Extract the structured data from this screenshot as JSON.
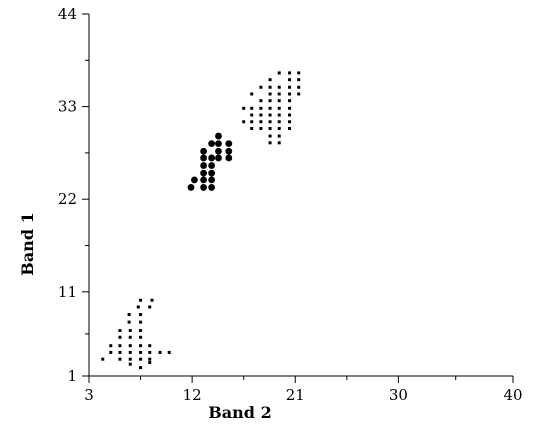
{
  "chart_data": {
    "type": "scatter",
    "title": "",
    "xlabel": "Band 2",
    "ylabel": "Band 1",
    "xlim": [
      3,
      40
    ],
    "ylim": [
      1,
      44
    ],
    "x_ticks": [
      3,
      12,
      21,
      30,
      40
    ],
    "y_ticks": [
      1,
      11,
      22,
      33,
      44
    ],
    "grid": false,
    "series": [
      {
        "marker": "small-square",
        "color": "#000000",
        "points": [
          [
            7.5,
            10.0
          ],
          [
            8.5,
            10.0
          ],
          [
            8.3,
            9.2
          ],
          [
            7.3,
            9.2
          ],
          [
            6.5,
            8.3
          ],
          [
            7.5,
            8.3
          ],
          [
            6.5,
            7.4
          ],
          [
            7.5,
            7.4
          ],
          [
            5.7,
            6.4
          ],
          [
            6.6,
            6.4
          ],
          [
            7.5,
            6.4
          ],
          [
            5.7,
            5.6
          ],
          [
            6.6,
            5.6
          ],
          [
            7.5,
            5.6
          ],
          [
            4.9,
            4.6
          ],
          [
            5.7,
            4.6
          ],
          [
            6.6,
            4.6
          ],
          [
            7.5,
            4.6
          ],
          [
            8.3,
            4.6
          ],
          [
            4.9,
            3.8
          ],
          [
            5.7,
            3.8
          ],
          [
            6.6,
            3.8
          ],
          [
            7.5,
            3.8
          ],
          [
            8.3,
            3.8
          ],
          [
            9.2,
            3.8
          ],
          [
            10.0,
            3.8
          ],
          [
            4.2,
            3.0
          ],
          [
            5.7,
            3.0
          ],
          [
            6.6,
            3.0
          ],
          [
            7.5,
            3.0
          ],
          [
            8.3,
            3.0
          ],
          [
            6.6,
            2.4
          ],
          [
            7.5,
            2.0
          ],
          [
            8.3,
            2.6
          ]
        ]
      },
      {
        "marker": "filled-circle",
        "color": "#000000",
        "points": [
          [
            14.3,
            29.5
          ],
          [
            13.7,
            28.6
          ],
          [
            14.3,
            28.6
          ],
          [
            15.2,
            28.6
          ],
          [
            13.0,
            27.7
          ],
          [
            14.3,
            27.7
          ],
          [
            15.2,
            27.7
          ],
          [
            13.0,
            26.9
          ],
          [
            13.7,
            26.9
          ],
          [
            14.3,
            26.9
          ],
          [
            15.2,
            26.9
          ],
          [
            13.0,
            26.0
          ],
          [
            13.7,
            26.0
          ],
          [
            13.0,
            25.1
          ],
          [
            13.7,
            25.1
          ],
          [
            12.2,
            24.3
          ],
          [
            13.0,
            24.3
          ],
          [
            13.7,
            24.3
          ],
          [
            11.9,
            23.4
          ],
          [
            13.0,
            23.4
          ],
          [
            13.7,
            23.4
          ]
        ]
      },
      {
        "marker": "small-square",
        "color": "#000000",
        "points": [
          [
            19.6,
            37.0
          ],
          [
            20.5,
            37.0
          ],
          [
            21.3,
            37.0
          ],
          [
            18.8,
            36.2
          ],
          [
            20.5,
            36.2
          ],
          [
            21.3,
            36.2
          ],
          [
            18.0,
            35.3
          ],
          [
            18.8,
            35.3
          ],
          [
            19.6,
            35.3
          ],
          [
            20.5,
            35.3
          ],
          [
            21.3,
            35.3
          ],
          [
            17.2,
            34.5
          ],
          [
            18.8,
            34.5
          ],
          [
            19.6,
            34.5
          ],
          [
            20.5,
            34.5
          ],
          [
            21.3,
            34.5
          ],
          [
            18.0,
            33.7
          ],
          [
            18.8,
            33.7
          ],
          [
            19.6,
            33.7
          ],
          [
            20.5,
            33.7
          ],
          [
            16.5,
            32.8
          ],
          [
            17.2,
            32.8
          ],
          [
            18.0,
            32.8
          ],
          [
            18.8,
            32.8
          ],
          [
            19.6,
            32.8
          ],
          [
            20.5,
            32.8
          ],
          [
            17.2,
            32.0
          ],
          [
            18.0,
            32.0
          ],
          [
            18.8,
            32.0
          ],
          [
            19.6,
            32.0
          ],
          [
            20.5,
            32.0
          ],
          [
            16.5,
            31.2
          ],
          [
            17.2,
            31.2
          ],
          [
            18.0,
            31.2
          ],
          [
            18.8,
            31.2
          ],
          [
            19.6,
            31.2
          ],
          [
            20.5,
            31.2
          ],
          [
            17.2,
            30.4
          ],
          [
            18.0,
            30.4
          ],
          [
            18.8,
            30.4
          ],
          [
            19.6,
            30.4
          ],
          [
            20.5,
            30.4
          ],
          [
            18.8,
            29.5
          ],
          [
            19.6,
            29.5
          ],
          [
            18.8,
            28.7
          ],
          [
            19.6,
            28.7
          ]
        ]
      }
    ]
  }
}
